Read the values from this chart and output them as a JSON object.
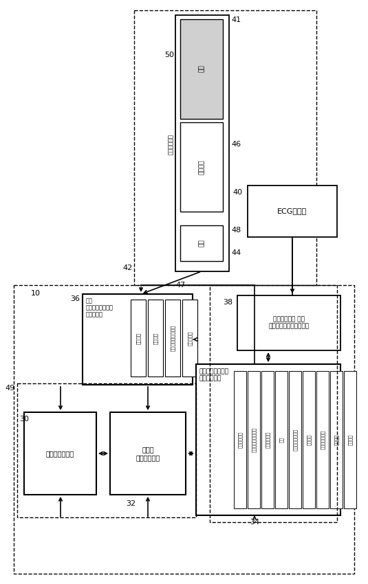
{
  "bg_color": "#ffffff",
  "fig_width": 5.35,
  "fig_height": 8.5,
  "label_10": "10",
  "label_30": "30",
  "label_32": "32",
  "label_34": "34",
  "label_36": "36",
  "label_38": "38",
  "label_40": "40",
  "label_41": "41",
  "label_42": "42",
  "label_44": "44",
  "label_46": "46",
  "label_47": "47",
  "label_48": "48",
  "label_49": "49",
  "label_50": "50",
  "iface_items": [
    "回転位置",
    "角度検出",
    "モータ駆動ユニット",
    "フルバック"
  ],
  "ctrl_items": [
    "データ記憶域",
    "モータ制御ユニット",
    "回転位置感知",
    "同期",
    "心臓ゲーティング",
    "画像処理",
    "体積撮像再構築",
    "走査検波",
    "角度検出"
  ]
}
